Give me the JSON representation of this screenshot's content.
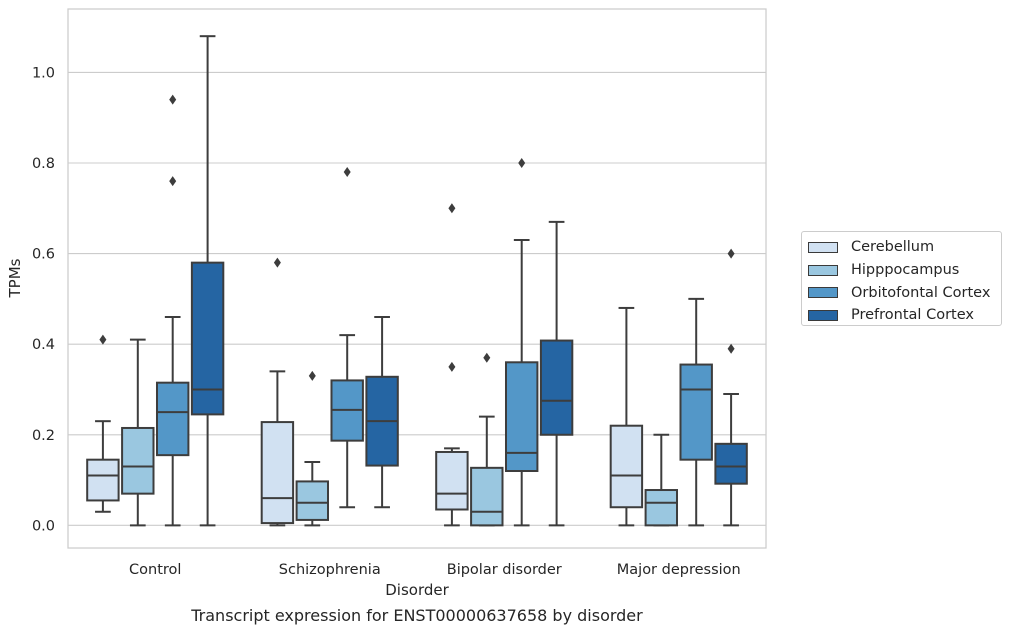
{
  "caption": "Transcript expression for ENST00000637658 by disorder",
  "chart_data": {
    "type": "box",
    "xlabel": "Disorder",
    "ylabel": "TPMs",
    "ylim": [
      -0.05,
      1.14
    ],
    "yticks": [
      0.0,
      0.2,
      0.4,
      0.6,
      0.8,
      1.0
    ],
    "ytick_labels": [
      "0.0",
      "0.2",
      "0.4",
      "0.6",
      "0.8",
      "1.0"
    ],
    "grid": "horizontal",
    "legend_position": "right",
    "categories": [
      "Control",
      "Schizophrenia",
      "Bipolar disorder",
      "Major depression"
    ],
    "series": [
      {
        "name": "Cerebellum",
        "color": "#d1e1f2",
        "boxes": [
          {
            "whisker_low": 0.03,
            "q1": 0.055,
            "median": 0.11,
            "q3": 0.145,
            "whisker_high": 0.23,
            "outliers": [
              0.41
            ]
          },
          {
            "whisker_low": 0.0,
            "q1": 0.005,
            "median": 0.06,
            "q3": 0.228,
            "whisker_high": 0.34,
            "outliers": [
              0.58
            ]
          },
          {
            "whisker_low": 0.0,
            "q1": 0.035,
            "median": 0.07,
            "q3": 0.162,
            "whisker_high": 0.17,
            "outliers": [
              0.35,
              0.7
            ]
          },
          {
            "whisker_low": 0.0,
            "q1": 0.04,
            "median": 0.11,
            "q3": 0.22,
            "whisker_high": 0.48,
            "outliers": []
          }
        ]
      },
      {
        "name": "Hipppocampus",
        "color": "#9ac7e0",
        "boxes": [
          {
            "whisker_low": 0.0,
            "q1": 0.07,
            "median": 0.13,
            "q3": 0.215,
            "whisker_high": 0.41,
            "outliers": []
          },
          {
            "whisker_low": 0.0,
            "q1": 0.012,
            "median": 0.05,
            "q3": 0.097,
            "whisker_high": 0.14,
            "outliers": [
              0.33
            ]
          },
          {
            "whisker_low": 0.0,
            "q1": 0.0,
            "median": 0.03,
            "q3": 0.127,
            "whisker_high": 0.24,
            "outliers": [
              0.37
            ]
          },
          {
            "whisker_low": 0.0,
            "q1": 0.0,
            "median": 0.05,
            "q3": 0.078,
            "whisker_high": 0.2,
            "outliers": []
          }
        ]
      },
      {
        "name": "Orbitofontal Cortex",
        "color": "#5397c8",
        "boxes": [
          {
            "whisker_low": 0.0,
            "q1": 0.155,
            "median": 0.25,
            "q3": 0.315,
            "whisker_high": 0.46,
            "outliers": [
              0.76,
              0.94
            ]
          },
          {
            "whisker_low": 0.04,
            "q1": 0.187,
            "median": 0.255,
            "q3": 0.32,
            "whisker_high": 0.42,
            "outliers": [
              0.78
            ]
          },
          {
            "whisker_low": 0.0,
            "q1": 0.12,
            "median": 0.16,
            "q3": 0.36,
            "whisker_high": 0.63,
            "outliers": [
              0.8
            ]
          },
          {
            "whisker_low": 0.0,
            "q1": 0.145,
            "median": 0.3,
            "q3": 0.355,
            "whisker_high": 0.5,
            "outliers": []
          }
        ]
      },
      {
        "name": "Prefrontal Cortex",
        "color": "#2565a3",
        "boxes": [
          {
            "whisker_low": 0.0,
            "q1": 0.245,
            "median": 0.3,
            "q3": 0.58,
            "whisker_high": 1.08,
            "outliers": []
          },
          {
            "whisker_low": 0.04,
            "q1": 0.132,
            "median": 0.23,
            "q3": 0.328,
            "whisker_high": 0.46,
            "outliers": []
          },
          {
            "whisker_low": 0.0,
            "q1": 0.2,
            "median": 0.275,
            "q3": 0.408,
            "whisker_high": 0.67,
            "outliers": []
          },
          {
            "whisker_low": 0.0,
            "q1": 0.092,
            "median": 0.13,
            "q3": 0.18,
            "whisker_high": 0.29,
            "outliers": [
              0.39,
              0.6
            ]
          }
        ]
      }
    ]
  }
}
